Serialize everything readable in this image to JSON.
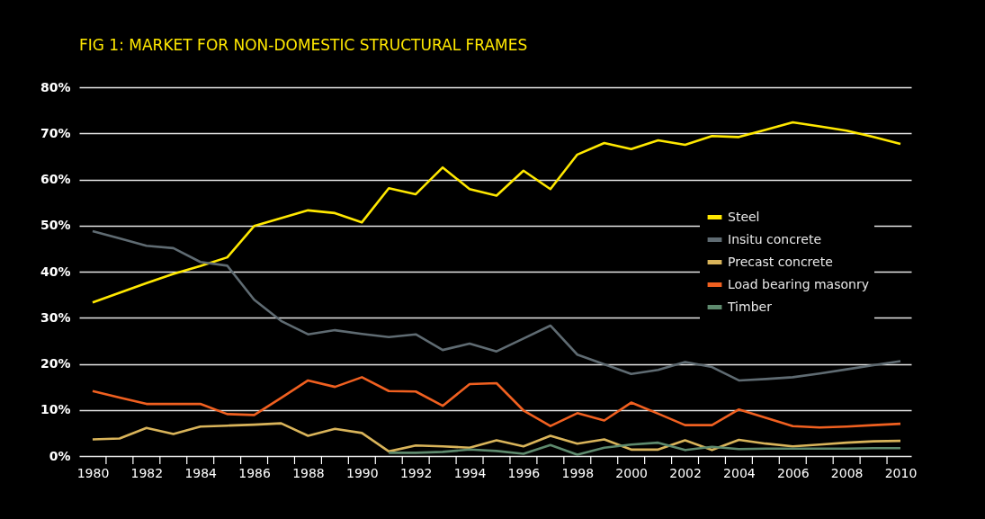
{
  "chart_data": {
    "type": "line",
    "title": "FIG 1: MARKET FOR NON-DOMESTIC STRUCTURAL FRAMES",
    "x": [
      1980,
      1981,
      1982,
      1983,
      1984,
      1985,
      1986,
      1987,
      1988,
      1989,
      1990,
      1991,
      1992,
      1993,
      1994,
      1995,
      1996,
      1997,
      1998,
      1999,
      2000,
      2001,
      2002,
      2003,
      2004,
      2005,
      2006,
      2007,
      2008,
      2009,
      2010
    ],
    "series": [
      {
        "name": "Steel",
        "color": "#ffe800",
        "values": [
          33.3,
          35.4,
          37.5,
          39.5,
          41.2,
          43.1,
          49.9,
          51.6,
          53.3,
          52.7,
          50.7,
          58.1,
          56.8,
          62.6,
          57.9,
          56.5,
          61.9,
          57.9,
          65.4,
          67.9,
          66.6,
          68.5,
          67.5,
          69.4,
          69.2,
          70.8,
          72.4,
          71.5,
          70.6,
          69.2,
          67.7
        ]
      },
      {
        "name": "Insitu concrete",
        "color": "#5f6b72",
        "values": [
          48.8,
          47.2,
          45.6,
          45.1,
          42.1,
          41.3,
          33.9,
          29.3,
          26.4,
          27.3,
          26.5,
          25.8,
          26.4,
          23.0,
          24.4,
          22.7,
          25.5,
          28.3,
          22.0,
          19.9,
          17.8,
          18.7,
          20.4,
          19.3,
          16.4,
          16.7,
          17.1,
          17.9,
          18.8,
          19.7,
          20.6
        ]
      },
      {
        "name": "Precast concrete",
        "color": "#d9b45a",
        "values": [
          3.6,
          3.8,
          6.1,
          4.8,
          6.4,
          6.6,
          6.8,
          7.1,
          4.4,
          5.9,
          5.0,
          1.0,
          2.3,
          2.1,
          1.8,
          3.4,
          2.1,
          4.4,
          2.7,
          3.6,
          1.4,
          1.4,
          3.4,
          1.3,
          3.5,
          2.7,
          2.1,
          2.5,
          2.9,
          3.2,
          3.3
        ]
      },
      {
        "name": "Load bearing masonry",
        "color": "#f06020",
        "values": [
          14.1,
          12.7,
          11.3,
          11.3,
          11.3,
          9.1,
          8.9,
          12.6,
          16.4,
          15.0,
          17.1,
          14.1,
          14.0,
          10.9,
          15.6,
          15.8,
          9.9,
          6.5,
          9.3,
          7.7,
          11.6,
          9.2,
          6.7,
          6.7,
          10.1,
          8.3,
          6.5,
          6.2,
          6.4,
          6.7,
          7.0
        ]
      },
      {
        "name": "Timber",
        "color": "#5e8a6e",
        "values": [
          null,
          null,
          null,
          null,
          null,
          null,
          null,
          null,
          null,
          null,
          null,
          0.7,
          0.7,
          0.9,
          1.4,
          1.1,
          0.5,
          2.4,
          0.3,
          1.8,
          2.5,
          2.9,
          1.3,
          2.0,
          1.5,
          1.6,
          1.6,
          1.6,
          1.6,
          1.7,
          1.7
        ]
      }
    ],
    "xlim": [
      1979.5,
      2010.4
    ],
    "xticks": [
      1980,
      {
        "value": 1980.5,
        "label": null
      },
      {
        "value": 1981.5,
        "label": null
      },
      1982,
      {
        "value": 1982.5,
        "label": null
      },
      {
        "value": 1983.5,
        "label": null
      },
      1984,
      {
        "value": 1984.5,
        "label": null
      },
      {
        "value": 1985.5,
        "label": null
      },
      1986,
      {
        "value": 1986.5,
        "label": null
      },
      {
        "value": 1987.5,
        "label": null
      },
      1988,
      {
        "value": 1988.5,
        "label": null
      },
      {
        "value": 1989.5,
        "label": null
      },
      1990,
      {
        "value": 1990.5,
        "label": null
      },
      {
        "value": 1991.5,
        "label": null
      },
      1992,
      {
        "value": 1992.5,
        "label": null
      },
      {
        "value": 1993.5,
        "label": null
      },
      1994,
      {
        "value": 1994.5,
        "label": null
      },
      {
        "value": 1995.5,
        "label": null
      },
      1996,
      {
        "value": 1996.5,
        "label": null
      },
      {
        "value": 1997.5,
        "label": null
      },
      1998,
      {
        "value": 1998.5,
        "label": null
      },
      {
        "value": 1999.5,
        "label": null
      },
      2000,
      {
        "value": 2000.5,
        "label": null
      },
      {
        "value": 2001.5,
        "label": null
      },
      2002,
      {
        "value": 2002.5,
        "label": null
      },
      {
        "value": 2003.5,
        "label": null
      },
      2004,
      {
        "value": 2004.5,
        "label": null
      },
      {
        "value": 2005.5,
        "label": null
      },
      2006,
      {
        "value": 2006.5,
        "label": null
      },
      {
        "value": 2007.5,
        "label": null
      },
      2008,
      {
        "value": 2008.5,
        "label": null
      },
      {
        "value": 2009.5,
        "label": null
      },
      2010
    ],
    "ylim": [
      0,
      80
    ],
    "yticks": [
      {
        "value": 0,
        "label": "0%"
      },
      {
        "value": 10,
        "label": "10%"
      },
      {
        "value": 20,
        "label": "20%"
      },
      {
        "value": 30,
        "label": "30%"
      },
      {
        "value": 40,
        "label": "40%"
      },
      {
        "value": 50,
        "label": "50%"
      },
      {
        "value": 60,
        "label": "60%"
      },
      {
        "value": 70,
        "label": "70%"
      },
      {
        "value": 80,
        "label": "80%"
      }
    ],
    "grid": "y",
    "legend": "right",
    "line_style": "solid"
  }
}
